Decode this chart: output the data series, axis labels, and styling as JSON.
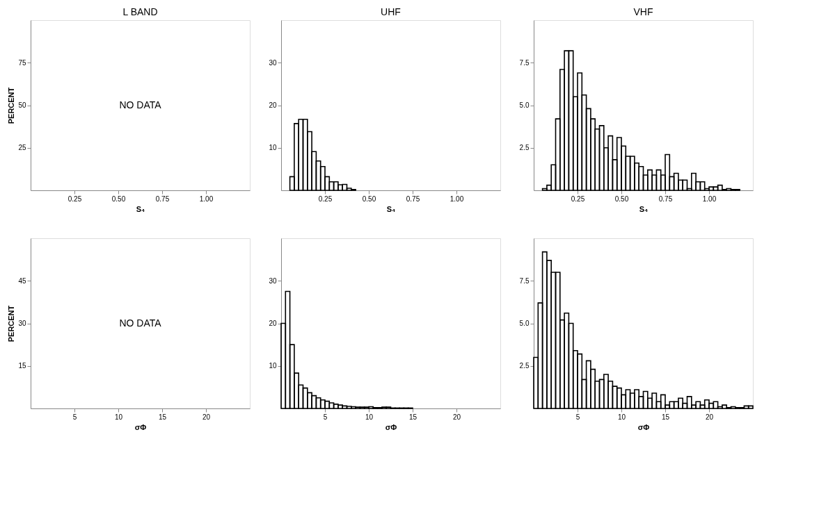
{
  "chart_data": [
    {
      "type": "histogram",
      "title": "L BAND",
      "xlabel": "S₄",
      "ylabel": "PERCENT",
      "color": "#000000",
      "xlim": [
        0,
        1.25
      ],
      "ylim": [
        0,
        100
      ],
      "xticks": [
        {
          "value": 0.25,
          "label": "0.25"
        },
        {
          "value": 0.5,
          "label": "0.50"
        },
        {
          "value": 0.75,
          "label": "0.75"
        },
        {
          "value": 1,
          "label": "1.00"
        }
      ],
      "yticks": [
        25,
        50,
        75
      ],
      "annotations": [
        "NO DATA"
      ]
    },
    {
      "type": "histogram",
      "title": "UHF",
      "xlabel": "S₄",
      "color": "#000000",
      "bins": [
        0.05,
        0.075,
        0.1,
        0.125,
        0.15,
        0.175,
        0.2,
        0.225,
        0.25,
        0.275,
        0.3,
        0.325,
        0.35,
        0.375,
        0.4,
        0.425
      ],
      "values": [
        3.2,
        15.7,
        16.7,
        16.7,
        13.8,
        9.1,
        6.9,
        5.6,
        3.2,
        2.0,
        2.0,
        1.3,
        1.4,
        0.5,
        0.2
      ],
      "xlim": [
        0,
        1.25
      ],
      "ylim": [
        0,
        40
      ],
      "xticks": [
        {
          "value": 0.25,
          "label": "0.25"
        },
        {
          "value": 0.5,
          "label": "0.50"
        },
        {
          "value": 0.75,
          "label": "0.75"
        },
        {
          "value": 1,
          "label": "1.00"
        }
      ],
      "yticks": [
        10,
        20,
        30
      ]
    },
    {
      "type": "histogram",
      "title": "VHF",
      "xlabel": "S₄",
      "color": "#000000",
      "bins": [
        0.05,
        0.075,
        0.1,
        0.125,
        0.15,
        0.175,
        0.2,
        0.225,
        0.25,
        0.275,
        0.3,
        0.325,
        0.35,
        0.375,
        0.4,
        0.425,
        0.45,
        0.475,
        0.5,
        0.525,
        0.55,
        0.575,
        0.6,
        0.625,
        0.65,
        0.675,
        0.7,
        0.725,
        0.75,
        0.775,
        0.8,
        0.825,
        0.85,
        0.875,
        0.9,
        0.925,
        0.95,
        0.975,
        1.0,
        1.025,
        1.05,
        1.075,
        1.1,
        1.125,
        1.15,
        1.175
      ],
      "values": [
        0.1,
        0.3,
        1.5,
        4.2,
        7.1,
        8.2,
        8.2,
        5.5,
        6.9,
        5.6,
        4.8,
        4.2,
        3.6,
        3.8,
        2.5,
        3.2,
        1.8,
        3.1,
        2.6,
        2.0,
        2.0,
        1.6,
        1.4,
        0.9,
        1.2,
        0.9,
        1.2,
        0.9,
        2.1,
        0.8,
        1.0,
        0.6,
        0.6,
        0.1,
        1.0,
        0.5,
        0.5,
        0.1,
        0.2,
        0.2,
        0.3,
        0.05,
        0.1,
        0.05,
        0.05
      ],
      "xlim": [
        0,
        1.25
      ],
      "ylim": [
        0,
        10
      ],
      "xticks": [
        {
          "value": 0.25,
          "label": "0.25"
        },
        {
          "value": 0.5,
          "label": "0.50"
        },
        {
          "value": 0.75,
          "label": "0.75"
        },
        {
          "value": 1,
          "label": "1.00"
        }
      ],
      "yticks": [
        {
          "value": 2.5,
          "label": "2.5"
        },
        {
          "value": 5,
          "label": "5.0"
        },
        {
          "value": 7.5,
          "label": "7.5"
        }
      ]
    },
    {
      "type": "histogram",
      "xlabel": "σΦ",
      "ylabel": "PERCENT",
      "color": "#000000",
      "xlim": [
        0,
        25
      ],
      "ylim": [
        0,
        60
      ],
      "xticks": [
        5,
        10,
        15,
        20
      ],
      "yticks": [
        15,
        30,
        45
      ],
      "annotations": [
        "NO DATA"
      ]
    },
    {
      "type": "histogram",
      "xlabel": "σΦ",
      "color": "#000000",
      "bins": [
        0,
        0.5,
        1,
        1.5,
        2,
        2.5,
        3,
        3.5,
        4,
        4.5,
        5,
        5.5,
        6,
        6.5,
        7,
        7.5,
        8,
        8.5,
        9,
        9.5,
        10,
        10.5,
        11,
        11.5,
        12,
        12.5,
        13,
        13.5,
        14,
        14.5,
        15
      ],
      "values": [
        20,
        27.5,
        15,
        8.3,
        5.5,
        4.8,
        3.7,
        3.0,
        2.5,
        2.0,
        1.7,
        1.3,
        1.0,
        0.8,
        0.6,
        0.5,
        0.4,
        0.3,
        0.3,
        0.3,
        0.4,
        0.2,
        0.2,
        0.3,
        0.3,
        0.1,
        0.1,
        0.1,
        0.1,
        0.1
      ],
      "xlim": [
        0,
        25
      ],
      "ylim": [
        0,
        40
      ],
      "xticks": [
        5,
        10,
        15,
        20
      ],
      "yticks": [
        10,
        20,
        30
      ]
    },
    {
      "type": "histogram",
      "xlabel": "σΦ",
      "color": "#000000",
      "bins": [
        0,
        0.5,
        1,
        1.5,
        2,
        2.5,
        3,
        3.5,
        4,
        4.5,
        5,
        5.5,
        6,
        6.5,
        7,
        7.5,
        8,
        8.5,
        9,
        9.5,
        10,
        10.5,
        11,
        11.5,
        12,
        12.5,
        13,
        13.5,
        14,
        14.5,
        15,
        15.5,
        16,
        16.5,
        17,
        17.5,
        18,
        18.5,
        19,
        19.5,
        20,
        20.5,
        21,
        21.5,
        22,
        22.5,
        23,
        23.5,
        24,
        24.5,
        25
      ],
      "values": [
        3.0,
        6.2,
        9.2,
        8.7,
        8.0,
        8.0,
        5.2,
        5.6,
        5.0,
        3.4,
        3.2,
        1.7,
        2.8,
        2.3,
        1.6,
        1.7,
        2.0,
        1.6,
        1.3,
        1.2,
        0.8,
        1.1,
        0.9,
        1.1,
        0.7,
        1.0,
        0.6,
        0.9,
        0.4,
        0.8,
        0.2,
        0.4,
        0.4,
        0.6,
        0.3,
        0.7,
        0.2,
        0.4,
        0.2,
        0.5,
        0.3,
        0.4,
        0.1,
        0.2,
        0.05,
        0.1,
        0.05,
        0.05,
        0.15,
        0.15
      ],
      "xlim": [
        0,
        25
      ],
      "ylim": [
        0,
        10
      ],
      "xticks": [
        5,
        10,
        15,
        20
      ],
      "yticks": [
        {
          "value": 2.5,
          "label": "2.5"
        },
        {
          "value": 5,
          "label": "5.0"
        },
        {
          "value": 7.5,
          "label": "7.5"
        }
      ]
    }
  ]
}
